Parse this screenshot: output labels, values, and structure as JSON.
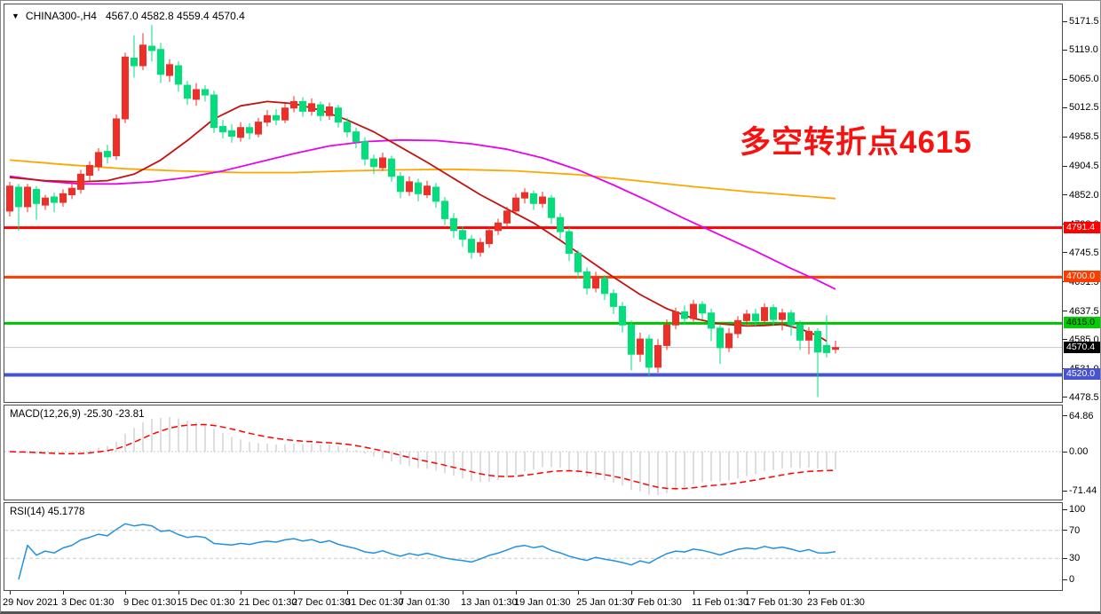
{
  "header": {
    "dropdown_icon": "▼",
    "symbol_period": "CHINA300-,H4",
    "ohlc": "4567.0 4582.8 4559.4 4570.4"
  },
  "annotation": {
    "text": "多空转折点4615",
    "color": "#fb1010"
  },
  "chart_data": {
    "type": "candlestick",
    "title": "CHINA300-,H4",
    "legend_position": "none",
    "grid": false,
    "style": {
      "bull_color": "#ee2f28",
      "bear_color": "#00df7c",
      "ma_fast_color": "#c21310",
      "ma_mid_color": "#e803e8",
      "ma_slow_color": "#ffa500",
      "macd_hist_color": "#bdbdbd",
      "macd_signal_color": "#ff0000",
      "rsi_color": "#2191e0",
      "level_dash_color": "#c8c8c8",
      "background": "#ffffff"
    },
    "panels": {
      "main": {
        "ylim": [
          4470,
          5203
        ],
        "yticks": [
          "5171.5",
          "5119.0",
          "5065.0",
          "5012.5",
          "4958.5",
          "4904.5",
          "4852.0",
          "4798.0",
          "4745.5",
          "4691.5",
          "4637.5",
          "4585.0",
          "4531.0",
          "4478.5"
        ],
        "hlines": [
          {
            "price": 4791.4,
            "label": "4791.4",
            "color": "#fe0000",
            "width": 3,
            "label_bg": "#fe0000",
            "label_fg": "#ffffff"
          },
          {
            "price": 4700.0,
            "label": "4700.0",
            "color": "#ff3c00",
            "width": 3,
            "label_bg": "#ff3c00",
            "label_fg": "#ffffff"
          },
          {
            "price": 4615.0,
            "label": "4615.0",
            "color": "#00c300",
            "width": 3,
            "label_bg": "#00ce00",
            "label_fg": "#000000"
          },
          {
            "price": 4520.0,
            "label": "4520.0",
            "color": "#4754d2",
            "width": 4,
            "label_bg": "#4754d2",
            "label_fg": "#ffffff"
          }
        ],
        "price_marker": {
          "price": 4570.4,
          "label": "4570.4",
          "line_color": "#c6c6c6",
          "label_bg": "#000000",
          "label_fg": "#ffffff"
        },
        "candles": [
          [
            4822,
            4876,
            4812,
            4868
          ],
          [
            4866,
            4872,
            4786,
            4830
          ],
          [
            4830,
            4872,
            4820,
            4866
          ],
          [
            4862,
            4868,
            4806,
            4836
          ],
          [
            4833,
            4852,
            4824,
            4846
          ],
          [
            4848,
            4856,
            4820,
            4838
          ],
          [
            4838,
            4862,
            4830,
            4854
          ],
          [
            4852,
            4872,
            4844,
            4864
          ],
          [
            4862,
            4898,
            4854,
            4890
          ],
          [
            4888,
            4914,
            4878,
            4906
          ],
          [
            4904,
            4938,
            4896,
            4930
          ],
          [
            4932,
            4944,
            4910,
            4922
          ],
          [
            4924,
            5000,
            4916,
            4992
          ],
          [
            4992,
            5114,
            4984,
            5106
          ],
          [
            5104,
            5146,
            5068,
            5090
          ],
          [
            5090,
            5150,
            5082,
            5128
          ],
          [
            5126,
            5165,
            5098,
            5118
          ],
          [
            5120,
            5132,
            5058,
            5074
          ],
          [
            5072,
            5102,
            5060,
            5092
          ],
          [
            5090,
            5098,
            5042,
            5056
          ],
          [
            5054,
            5062,
            5018,
            5030
          ],
          [
            5028,
            5058,
            5016,
            5046
          ],
          [
            5046,
            5054,
            5024,
            5036
          ],
          [
            5036,
            5044,
            4966,
            4976
          ],
          [
            4978,
            4990,
            4956,
            4968
          ],
          [
            4970,
            4982,
            4948,
            4960
          ],
          [
            4958,
            4986,
            4950,
            4976
          ],
          [
            4976,
            4984,
            4954,
            4966
          ],
          [
            4964,
            4994,
            4958,
            4986
          ],
          [
            4986,
            5008,
            4978,
            4998
          ],
          [
            4998,
            5010,
            4980,
            4990
          ],
          [
            4990,
            5020,
            4984,
            5012
          ],
          [
            5012,
            5034,
            5004,
            5024
          ],
          [
            5024,
            5032,
            4996,
            5006
          ],
          [
            5006,
            5030,
            4998,
            5020
          ],
          [
            5018,
            5024,
            4988,
            4998
          ],
          [
            4998,
            5022,
            4990,
            5014
          ],
          [
            5012,
            5018,
            4976,
            4986
          ],
          [
            4986,
            4994,
            4958,
            4968
          ],
          [
            4968,
            4976,
            4938,
            4950
          ],
          [
            4950,
            4958,
            4906,
            4918
          ],
          [
            4918,
            4926,
            4890,
            4904
          ],
          [
            4902,
            4930,
            4896,
            4920
          ],
          [
            4918,
            4924,
            4876,
            4886
          ],
          [
            4886,
            4894,
            4846,
            4858
          ],
          [
            4858,
            4886,
            4850,
            4876
          ],
          [
            4874,
            4882,
            4840,
            4854
          ],
          [
            4852,
            4878,
            4846,
            4868
          ],
          [
            4866,
            4874,
            4828,
            4840
          ],
          [
            4840,
            4848,
            4796,
            4808
          ],
          [
            4808,
            4818,
            4772,
            4786
          ],
          [
            4786,
            4794,
            4756,
            4770
          ],
          [
            4770,
            4778,
            4734,
            4746
          ],
          [
            4746,
            4772,
            4738,
            4764
          ],
          [
            4762,
            4794,
            4754,
            4786
          ],
          [
            4786,
            4808,
            4778,
            4800
          ],
          [
            4800,
            4830,
            4792,
            4822
          ],
          [
            4822,
            4854,
            4814,
            4846
          ],
          [
            4846,
            4864,
            4836,
            4856
          ],
          [
            4854,
            4860,
            4824,
            4836
          ],
          [
            4836,
            4858,
            4828,
            4848
          ],
          [
            4846,
            4852,
            4798,
            4810
          ],
          [
            4810,
            4818,
            4770,
            4784
          ],
          [
            4784,
            4792,
            4730,
            4744
          ],
          [
            4744,
            4750,
            4698,
            4710
          ],
          [
            4710,
            4718,
            4668,
            4680
          ],
          [
            4680,
            4710,
            4672,
            4700
          ],
          [
            4698,
            4704,
            4658,
            4670
          ],
          [
            4670,
            4678,
            4632,
            4646
          ],
          [
            4646,
            4654,
            4598,
            4612
          ],
          [
            4612,
            4620,
            4528,
            4558
          ],
          [
            4558,
            4598,
            4544,
            4586
          ],
          [
            4586,
            4594,
            4518,
            4534
          ],
          [
            4534,
            4586,
            4524,
            4574
          ],
          [
            4574,
            4622,
            4566,
            4612
          ],
          [
            4612,
            4644,
            4604,
            4636
          ],
          [
            4636,
            4648,
            4612,
            4624
          ],
          [
            4624,
            4658,
            4618,
            4650
          ],
          [
            4650,
            4656,
            4622,
            4634
          ],
          [
            4634,
            4642,
            4582,
            4606
          ],
          [
            4606,
            4614,
            4540,
            4570
          ],
          [
            4570,
            4606,
            4562,
            4596
          ],
          [
            4596,
            4628,
            4588,
            4620
          ],
          [
            4620,
            4640,
            4612,
            4632
          ],
          [
            4632,
            4642,
            4608,
            4620
          ],
          [
            4620,
            4652,
            4614,
            4644
          ],
          [
            4644,
            4650,
            4610,
            4622
          ],
          [
            4622,
            4642,
            4602,
            4634
          ],
          [
            4634,
            4640,
            4592,
            4612
          ],
          [
            4612,
            4620,
            4566,
            4584
          ],
          [
            4584,
            4608,
            4558,
            4600
          ],
          [
            4600,
            4606,
            4479,
            4562
          ],
          [
            4574,
            4630,
            4552,
            4561
          ],
          [
            4567.0,
            4582.8,
            4559.4,
            4570.4
          ]
        ],
        "overlays": {
          "ma_slow": [
            [
              0,
              4916
            ],
            [
              6,
              4908
            ],
            [
              13,
              4900
            ],
            [
              19,
              4896
            ],
            [
              26,
              4893
            ],
            [
              32,
              4893
            ],
            [
              38,
              4896
            ],
            [
              44,
              4898
            ],
            [
              50,
              4899
            ],
            [
              57,
              4896
            ],
            [
              64,
              4889
            ],
            [
              70,
              4879
            ],
            [
              77,
              4867
            ],
            [
              83,
              4858
            ],
            [
              90,
              4849
            ],
            [
              93,
              4845
            ]
          ],
          "ma_mid": [
            [
              0,
              4886
            ],
            [
              4,
              4877
            ],
            [
              8,
              4872
            ],
            [
              12,
              4872
            ],
            [
              16,
              4876
            ],
            [
              20,
              4884
            ],
            [
              24,
              4896
            ],
            [
              28,
              4912
            ],
            [
              32,
              4928
            ],
            [
              36,
              4942
            ],
            [
              40,
              4950
            ],
            [
              44,
              4953
            ],
            [
              48,
              4952
            ],
            [
              52,
              4946
            ],
            [
              56,
              4936
            ],
            [
              60,
              4920
            ],
            [
              64,
              4898
            ],
            [
              68,
              4870
            ],
            [
              72,
              4840
            ],
            [
              76,
              4808
            ],
            [
              80,
              4778
            ],
            [
              84,
              4748
            ],
            [
              88,
              4716
            ],
            [
              91,
              4694
            ],
            [
              93,
              4678
            ]
          ],
          "ma_fast": [
            [
              0,
              4884
            ],
            [
              4,
              4878
            ],
            [
              8,
              4876
            ],
            [
              11,
              4878
            ],
            [
              14,
              4890
            ],
            [
              17,
              4916
            ],
            [
              20,
              4952
            ],
            [
              23,
              4992
            ],
            [
              26,
              5016
            ],
            [
              29,
              5024
            ],
            [
              32,
              5020
            ],
            [
              35,
              5008
            ],
            [
              38,
              4990
            ],
            [
              41,
              4968
            ],
            [
              44,
              4940
            ],
            [
              47,
              4912
            ],
            [
              50,
              4882
            ],
            [
              53,
              4852
            ],
            [
              56,
              4826
            ],
            [
              59,
              4800
            ],
            [
              62,
              4768
            ],
            [
              65,
              4734
            ],
            [
              68,
              4700
            ],
            [
              71,
              4668
            ],
            [
              74,
              4642
            ],
            [
              77,
              4624
            ],
            [
              80,
              4614
            ],
            [
              83,
              4610
            ],
            [
              85,
              4611
            ],
            [
              87,
              4613
            ],
            [
              89,
              4605
            ],
            [
              91,
              4592
            ],
            [
              92,
              4582
            ]
          ]
        }
      },
      "macd": {
        "label": "MACD(12,26,9) -25.30 -23.81",
        "params": [
          12,
          26,
          9
        ],
        "current_values": [
          -25.3,
          -23.81
        ],
        "yticks": [
          {
            "v": 64.86,
            "label": "64.86"
          },
          {
            "v": 0,
            "label": "0.00"
          },
          {
            "v": -71.44,
            "label": "-71.44"
          }
        ]
      },
      "rsi": {
        "label": "RSI(14) 45.1778",
        "period": 14,
        "current_value": 45.1778,
        "levels": [
          70,
          30
        ],
        "yticks": [
          {
            "v": 100,
            "label": "100"
          },
          {
            "v": 70,
            "label": "70"
          },
          {
            "v": 30,
            "label": "30"
          },
          {
            "v": 0,
            "label": "0"
          }
        ]
      },
      "time_axis": {
        "ticks": [
          {
            "i": 0,
            "label": "29 Nov 2021"
          },
          {
            "i": 6,
            "label": "3 Dec 01:30"
          },
          {
            "i": 13,
            "label": "9 Dec 01:30"
          },
          {
            "i": 19,
            "label": "15 Dec 01:30"
          },
          {
            "i": 26,
            "label": "21 Dec 01:30"
          },
          {
            "i": 32,
            "label": "27 Dec 01:30"
          },
          {
            "i": 38,
            "label": "31 Dec 01:30"
          },
          {
            "i": 44,
            "label": "7 Jan 01:30"
          },
          {
            "i": 51,
            "label": "13 Jan 01:30"
          },
          {
            "i": 57,
            "label": "19 Jan 01:30"
          },
          {
            "i": 64,
            "label": "25 Jan 01:30"
          },
          {
            "i": 70,
            "label": "7 Feb 01:30"
          },
          {
            "i": 77,
            "label": "11 Feb 01:30"
          },
          {
            "i": 83,
            "label": "17 Feb 01:30"
          },
          {
            "i": 90,
            "label": "23 Feb 01:30"
          }
        ]
      }
    }
  }
}
